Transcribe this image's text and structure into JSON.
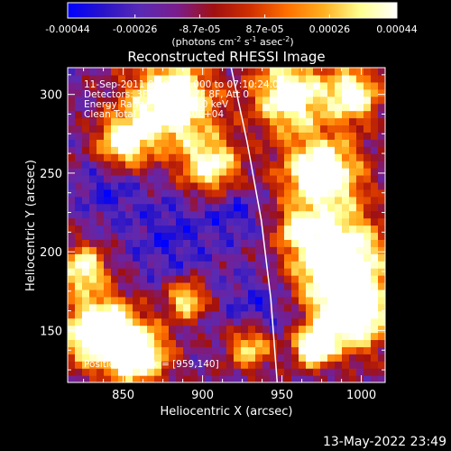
{
  "chart_data": {
    "type": "heatmap",
    "title": "Reconstructed RHESSI Image",
    "xlabel": "Heliocentric X (arcsec)",
    "ylabel": "Heliocentric Y (arcsec)",
    "xlim": [
      815,
      1015
    ],
    "ylim": [
      117,
      317
    ],
    "xticks": [
      850,
      900,
      950,
      1000
    ],
    "yticks": [
      150,
      200,
      250,
      300
    ],
    "colorbar": {
      "label_main": "(photons cm",
      "label_exp1": "-2",
      "label_mid1": " s",
      "label_exp2": "-1",
      "label_mid2": " asec",
      "label_exp3": "-2",
      "label_end": ")",
      "range": [
        -0.00044,
        0.00044
      ],
      "ticks": [
        "-0.00044",
        "-0.00026",
        "-8.7e-05",
        "8.7e-05",
        "0.00026",
        "0.00044"
      ],
      "colormap": [
        "#0000ff",
        "#2a14c8",
        "#5a2ab4",
        "#7a1d8c",
        "#a01010",
        "#d03000",
        "#ff7000",
        "#ffb020",
        "#ffff90",
        "#ffffff"
      ]
    },
    "annotations": [
      "11-Sep-2011 07:04:24.000 to 07:10:24.000",
      "Detectors: 3F 4F 5F 6F 7F 8F, Att 0",
      "Energy Range: 25.0 - 50.0 keV",
      "Clean     Total counts: 1.40E+04"
    ],
    "peak_label": "Position of Peak = [959,140]",
    "limb_points": [
      [
        918,
        317
      ],
      [
        928,
        270
      ],
      [
        937,
        220
      ],
      [
        943,
        170
      ],
      [
        947,
        117
      ]
    ],
    "grid": false
  },
  "footer": {
    "timestamp": "13-May-2022 23:49"
  }
}
